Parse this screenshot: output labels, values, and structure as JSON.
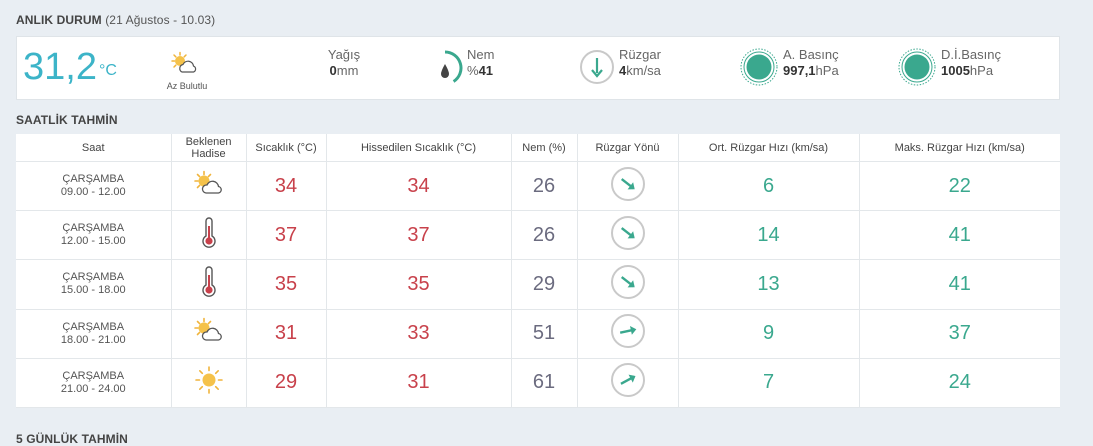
{
  "current_section": {
    "title": "ANLIK DURUM",
    "subtitle": "(21 Ağustos - 10.03)"
  },
  "current": {
    "temperature": "31,2",
    "temperature_unit": "°C",
    "weather_icon": "partly-cloudy-icon",
    "weather_desc": "Az Bulutlu",
    "rain": {
      "label": "Yağış",
      "value": "0",
      "unit": "mm"
    },
    "humidity": {
      "label": "Nem",
      "prefix": "%",
      "value": "41",
      "percent": 41
    },
    "wind": {
      "label": "Rüzgar",
      "value": "4",
      "unit": "km/sa"
    },
    "pressure": {
      "label": "A. Basınç",
      "value": "997,1",
      "unit": "hPa"
    },
    "sea_pressure": {
      "label": "D.İ.Basınç",
      "value": "1005",
      "unit": "hPa"
    }
  },
  "hourly_section": {
    "title": "SAATLİK TAHMİN"
  },
  "hourly": {
    "headers": [
      "Saat",
      "Beklenen Hadise",
      "Sıcaklık (°C)",
      "Hissedilen Sıcaklık (°C)",
      "Nem (%)",
      "Rüzgar Yönü",
      "Ort. Rüzgar Hızı (km/sa)",
      "Maks. Rüzgar Hızı (km/sa)"
    ],
    "rows": [
      {
        "day": "ÇARŞAMBA",
        "time": "09.00 - 12.00",
        "icon": "partly-cloudy-icon",
        "temp": "34",
        "feels": "34",
        "humidity": "26",
        "wind_dir": "southeast-arrow-icon",
        "avg_wind": "6",
        "max_wind": "22"
      },
      {
        "day": "ÇARŞAMBA",
        "time": "12.00 - 15.00",
        "icon": "thermometer-icon",
        "temp": "37",
        "feels": "37",
        "humidity": "26",
        "wind_dir": "southeast-arrow-icon",
        "avg_wind": "14",
        "max_wind": "41"
      },
      {
        "day": "ÇARŞAMBA",
        "time": "15.00 - 18.00",
        "icon": "thermometer-icon",
        "temp": "35",
        "feels": "35",
        "humidity": "29",
        "wind_dir": "southeast-arrow-icon",
        "avg_wind": "13",
        "max_wind": "41"
      },
      {
        "day": "ÇARŞAMBA",
        "time": "18.00 - 21.00",
        "icon": "partly-cloudy-icon",
        "temp": "31",
        "feels": "33",
        "humidity": "51",
        "wind_dir": "east-arrow-icon",
        "avg_wind": "9",
        "max_wind": "37"
      },
      {
        "day": "ÇARŞAMBA",
        "time": "21.00 - 24.00",
        "icon": "sunny-icon",
        "temp": "29",
        "feels": "31",
        "humidity": "61",
        "wind_dir": "northeast-arrow-icon",
        "avg_wind": "7",
        "max_wind": "24"
      }
    ]
  },
  "daily_section": {
    "title": "5 GÜNLÜK TAHMİN"
  },
  "colors": {
    "accent": "#3cb4c8",
    "temp": "#c8414b",
    "humidity": "#6b6b7f",
    "wind": "#3aa88e"
  }
}
